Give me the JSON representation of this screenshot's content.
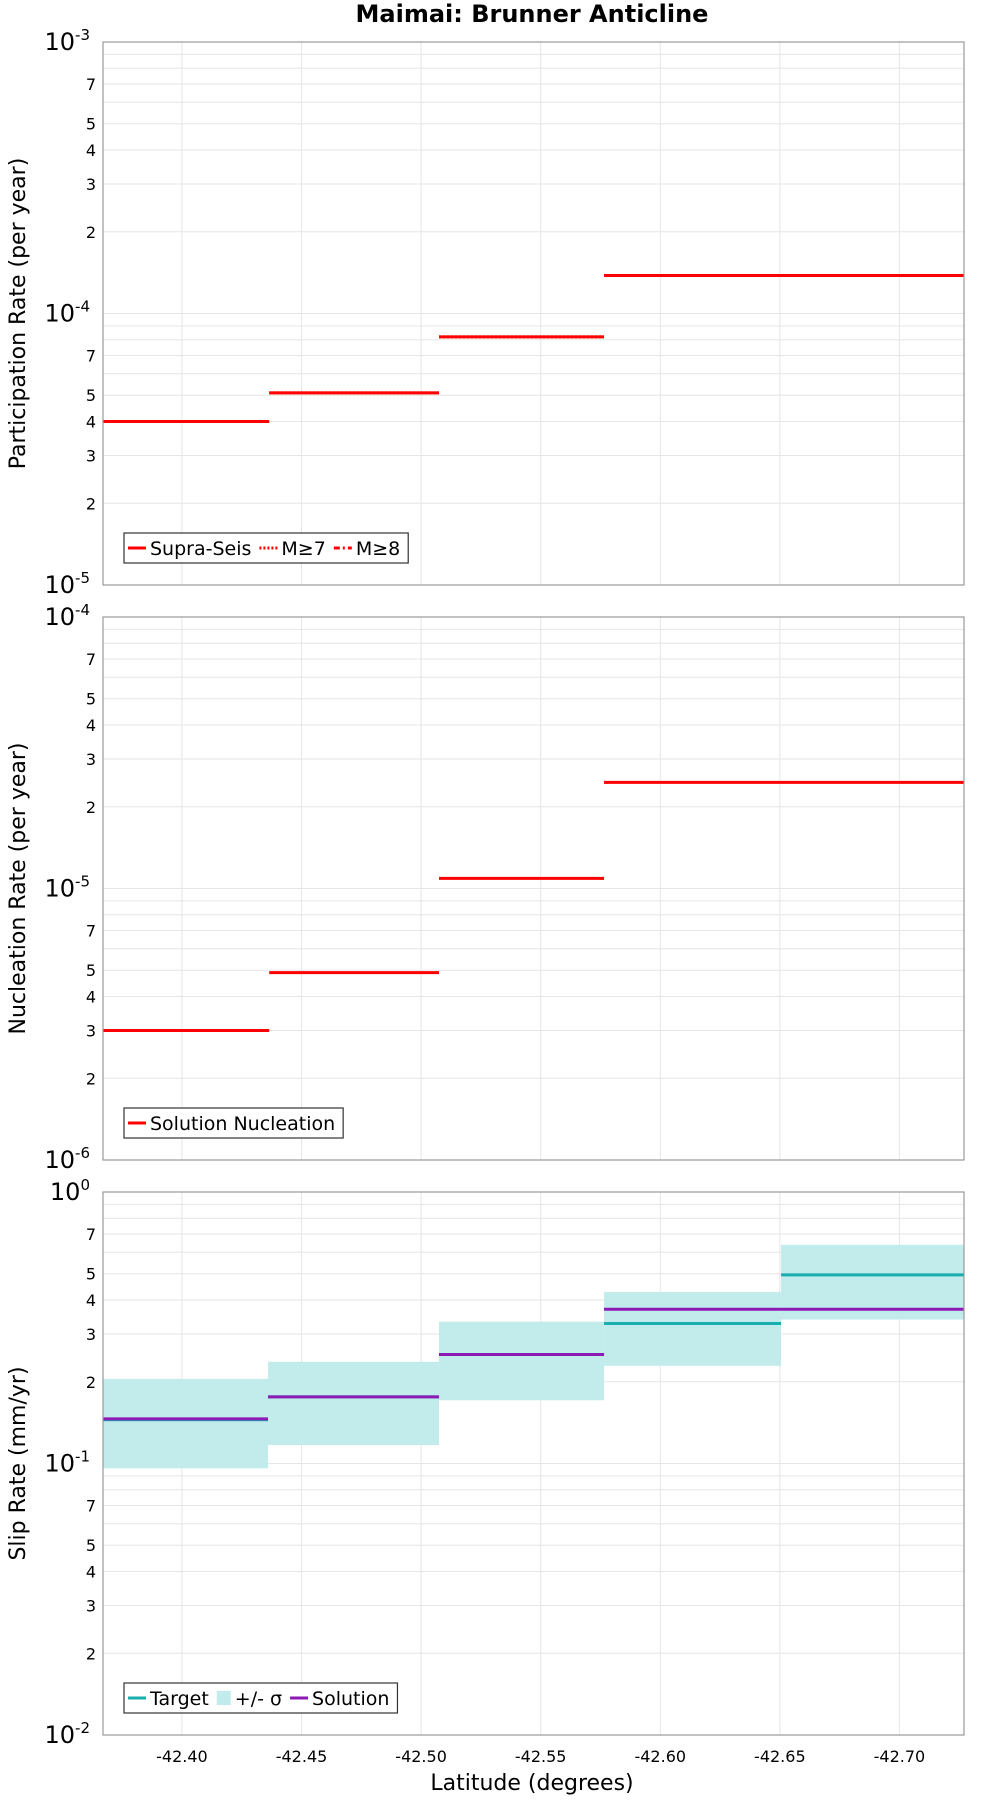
{
  "chart_data": {
    "title": "Maimai: Brunner Anticline",
    "xlabel": "Latitude (degrees)",
    "x_direction": "decreasing",
    "xlim": [
      -42.367,
      -42.727
    ],
    "xticks": [
      "-42.40",
      "-42.45",
      "-42.50",
      "-42.55",
      "-42.60",
      "-42.65",
      "-42.70"
    ],
    "xtick_values": [
      -42.4,
      -42.45,
      -42.5,
      -42.55,
      -42.6,
      -42.65,
      -42.7
    ],
    "grid": true,
    "panels": [
      {
        "id": "participation",
        "type": "line",
        "y_scale": "log",
        "ylabel": "Participation Rate (per year)",
        "ylim": [
          1e-05,
          0.001
        ],
        "decade_labels": [
          {
            "value": 0.001,
            "base": "10",
            "exp": "-3"
          },
          {
            "value": 0.0001,
            "base": "10",
            "exp": "-4"
          },
          {
            "value": 1e-05,
            "base": "10",
            "exp": "-5"
          }
        ],
        "minor_labels": [
          "7",
          "5",
          "4",
          "3",
          "2"
        ],
        "legend": {
          "position": "bottom-left",
          "entries": [
            {
              "label": "Supra-Seis",
              "color": "#ff0000",
              "style": "solid"
            },
            {
              "label": "M≥7",
              "color": "#ff0000",
              "style": "dotted"
            },
            {
              "label": "M≥8",
              "color": "#ff0000",
              "style": "dashdot"
            }
          ]
        },
        "series": [
          {
            "name": "Supra-Seis",
            "color": "#ff0000",
            "style": "solid",
            "steps": [
              [
                -42.367,
                -42.4365,
                4e-05
              ],
              [
                -42.4365,
                -42.5075,
                5.1e-05
              ],
              [
                -42.5075,
                -42.5765,
                8.2e-05
              ],
              [
                -42.5765,
                -42.727,
                0.000138
              ]
            ]
          },
          {
            "name": "M≥7",
            "color": "#ff0000",
            "style": "dotted",
            "steps": [
              [
                -42.367,
                -42.4365,
                4e-05
              ],
              [
                -42.4365,
                -42.5075,
                5.1e-05
              ],
              [
                -42.5075,
                -42.5765,
                8.2e-05
              ],
              [
                -42.5765,
                -42.727,
                0.000138
              ]
            ]
          }
        ]
      },
      {
        "id": "nucleation",
        "type": "line",
        "y_scale": "log",
        "ylabel": "Nucleation Rate (per year)",
        "ylim": [
          1e-06,
          0.0001
        ],
        "decade_labels": [
          {
            "value": 0.0001,
            "base": "10",
            "exp": "-4"
          },
          {
            "value": 1e-05,
            "base": "10",
            "exp": "-5"
          },
          {
            "value": 1e-06,
            "base": "10",
            "exp": "-6"
          }
        ],
        "minor_labels": [
          "7",
          "5",
          "4",
          "3",
          "2"
        ],
        "legend": {
          "position": "bottom-left",
          "entries": [
            {
              "label": "Solution Nucleation",
              "color": "#ff0000",
              "style": "solid"
            }
          ]
        },
        "series": [
          {
            "name": "Solution Nucleation",
            "color": "#ff0000",
            "style": "solid",
            "steps": [
              [
                -42.367,
                -42.4365,
                3e-06
              ],
              [
                -42.4365,
                -42.5075,
                4.9e-06
              ],
              [
                -42.5075,
                -42.5765,
                1.09e-05
              ],
              [
                -42.5765,
                -42.727,
                2.46e-05
              ]
            ]
          }
        ]
      },
      {
        "id": "slip",
        "type": "area",
        "y_scale": "log",
        "ylabel": "Slip Rate (mm/yr)",
        "ylim": [
          0.01,
          1
        ],
        "decade_labels": [
          {
            "value": 1,
            "base": "10",
            "exp": "0"
          },
          {
            "value": 0.1,
            "base": "10",
            "exp": "-1"
          },
          {
            "value": 0.01,
            "base": "10",
            "exp": "-2"
          }
        ],
        "minor_labels": [
          "7",
          "5",
          "4",
          "3",
          "2"
        ],
        "legend": {
          "position": "bottom-left",
          "entries": [
            {
              "label": "Target",
              "color": "#1aadad",
              "style": "solid"
            },
            {
              "label": "+/- σ",
              "color": "#c2ecec",
              "style": "band"
            },
            {
              "label": "Solution",
              "color": "#8e1ab5",
              "style": "solid"
            }
          ]
        },
        "bands": [
          {
            "name": "+/- σ",
            "color": "#c2ecec",
            "steps": [
              [
                -42.367,
                -42.436,
                0.096,
                0.205
              ],
              [
                -42.436,
                -42.5075,
                0.117,
                0.237
              ],
              [
                -42.5075,
                -42.5765,
                0.171,
                0.333
              ],
              [
                -42.5765,
                -42.6505,
                0.229,
                0.428
              ],
              [
                -42.6505,
                -42.727,
                0.339,
                0.639
              ]
            ]
          }
        ],
        "series": [
          {
            "name": "Target",
            "color": "#1aadad",
            "style": "solid",
            "steps": [
              [
                -42.367,
                -42.436,
                0.145
              ],
              [
                -42.436,
                -42.5075,
                0.176
              ],
              [
                -42.5075,
                -42.5765,
                0.252
              ],
              [
                -42.5765,
                -42.6505,
                0.328
              ],
              [
                -42.6505,
                -42.727,
                0.495
              ]
            ]
          },
          {
            "name": "Solution",
            "color": "#8e1ab5",
            "style": "solid",
            "steps": [
              [
                -42.367,
                -42.436,
                0.146
              ],
              [
                -42.436,
                -42.5075,
                0.176
              ],
              [
                -42.5075,
                -42.5765,
                0.252
              ],
              [
                -42.5765,
                -42.727,
                0.37
              ]
            ]
          }
        ]
      }
    ]
  }
}
